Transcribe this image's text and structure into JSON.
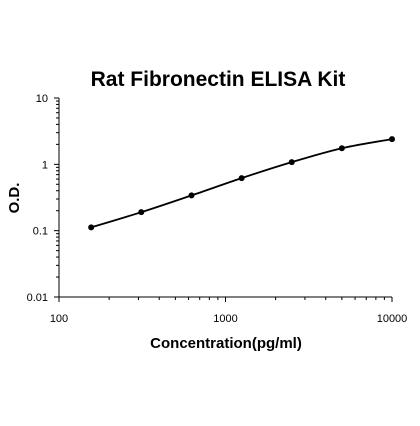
{
  "chart_data": {
    "type": "line",
    "title": "Rat Fibronectin ELISA Kit",
    "xlabel": "Concentration(pg/ml)",
    "ylabel": "O.D.",
    "xscale": "log",
    "yscale": "log",
    "xlim": [
      100,
      10000
    ],
    "ylim": [
      0.01,
      10
    ],
    "xticks": [
      "100",
      "1000",
      "10000"
    ],
    "yticks": [
      "0.01",
      "0.1",
      "1",
      "10"
    ],
    "grid": false,
    "series": [
      {
        "x": [
          156,
          312,
          625,
          1250,
          2500,
          5000,
          10000
        ],
        "y": [
          0.112,
          0.19,
          0.34,
          0.62,
          1.08,
          1.75,
          2.4
        ]
      }
    ],
    "colors": {
      "line": "#000000",
      "marker": "#000000"
    }
  }
}
